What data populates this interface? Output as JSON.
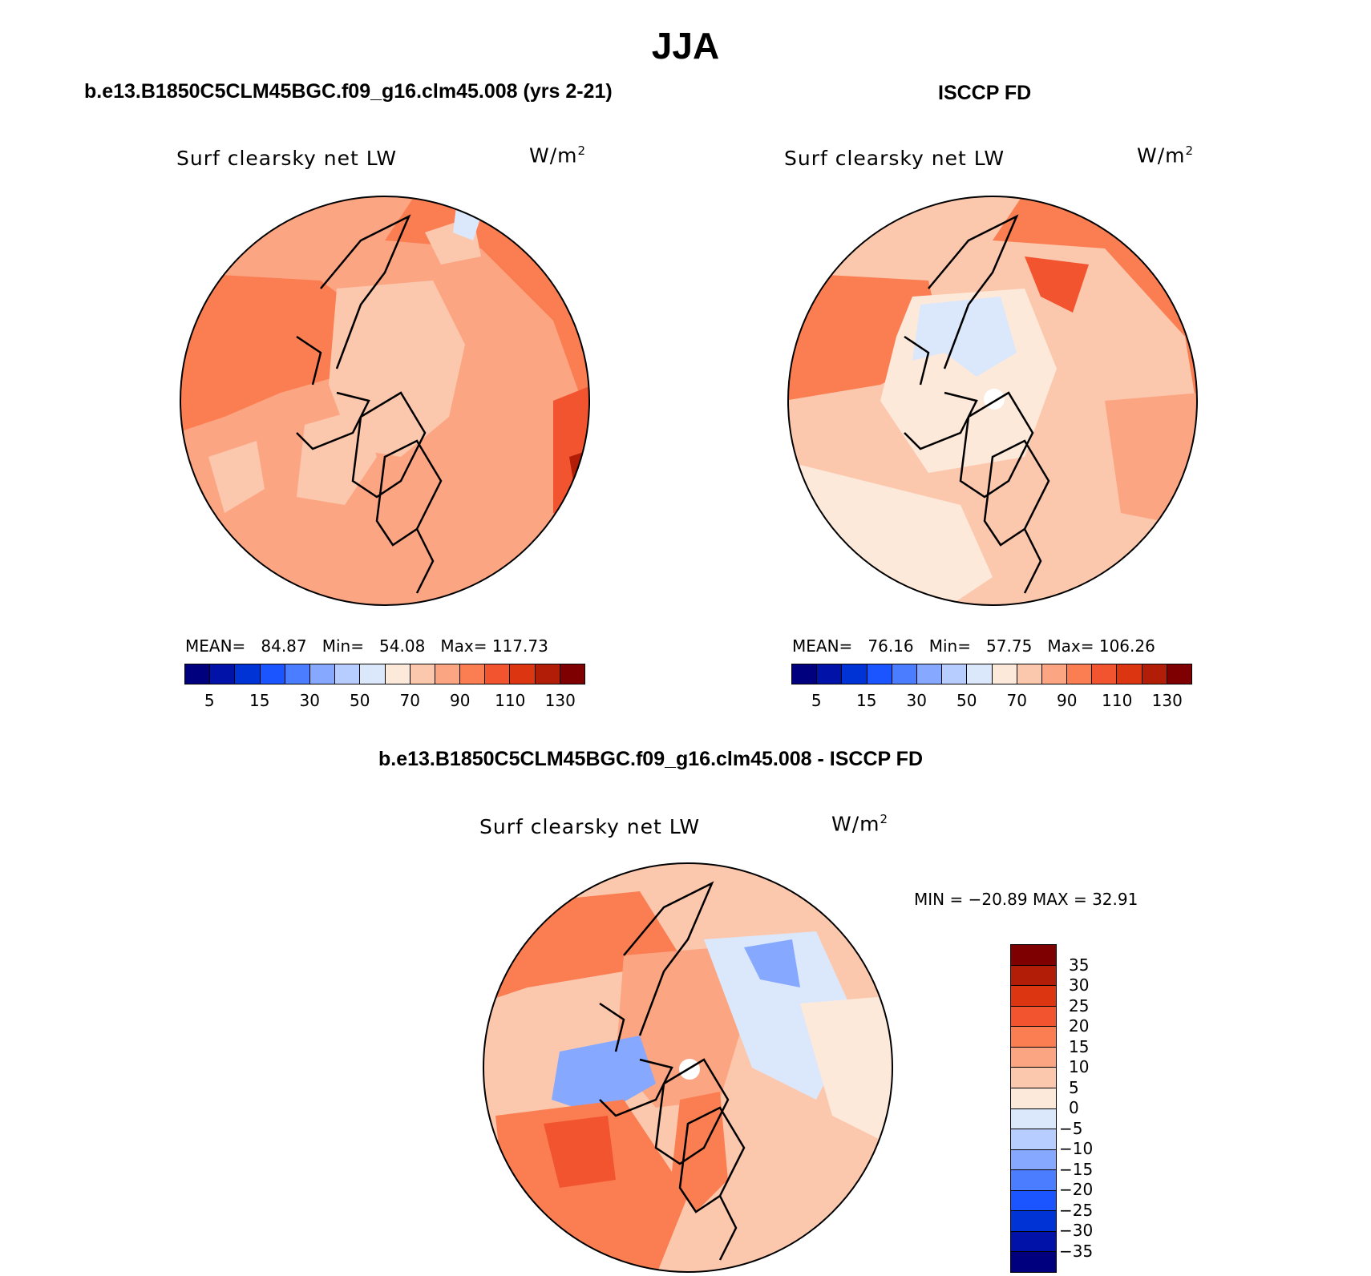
{
  "title": "JJA",
  "panels": {
    "model": {
      "title": "b.e13.B1850C5CLM45BGC.f09_g16.clm45.008 (yrs 2-21)",
      "variable": "Surf clearsky net LW",
      "units_base": "W/m",
      "units_exp": "2",
      "mean_label": "MEAN=",
      "mean": "84.87",
      "min_label": "Min=",
      "min": "54.08",
      "max_label": "Max=",
      "max": "117.73"
    },
    "obs": {
      "title": "ISCCP FD",
      "variable": "Surf clearsky net LW",
      "units_base": "W/m",
      "units_exp": "2",
      "mean_label": "MEAN=",
      "mean": "76.16",
      "min_label": "Min=",
      "min": "57.75",
      "max_label": "Max=",
      "max": "106.26"
    },
    "diff": {
      "title": "b.e13.B1850C5CLM45BGC.f09_g16.clm45.008 - ISCCP FD",
      "variable": "Surf clearsky net LW",
      "units_base": "W/m",
      "units_exp": "2",
      "minmax": "MIN = −20.89 MAX =   32.91"
    }
  },
  "colorbar_abs": {
    "colors": [
      "#00007f",
      "#0012a8",
      "#0033d6",
      "#1a55ff",
      "#4a7dff",
      "#86a8ff",
      "#b8cdff",
      "#dbe8fb",
      "#fde9da",
      "#fcc8ad",
      "#fca583",
      "#fb7e52",
      "#f25430",
      "#dc3511",
      "#b21d08",
      "#7e0000"
    ],
    "tick_labels": [
      "5",
      "15",
      "30",
      "50",
      "70",
      "90",
      "110",
      "130"
    ]
  },
  "colorbar_diff": {
    "colors": [
      "#7e0000",
      "#b21d08",
      "#dc3511",
      "#f25430",
      "#fb7e52",
      "#fca583",
      "#fcc8ad",
      "#fde9da",
      "#dbe8fb",
      "#b8cdff",
      "#86a8ff",
      "#4a7dff",
      "#1a55ff",
      "#0033d6",
      "#0012a8",
      "#00007f"
    ],
    "tick_labels": [
      "35",
      "30",
      "25",
      "20",
      "15",
      "10",
      "5",
      "0",
      "−5",
      "−10",
      "−15",
      "−20",
      "−25",
      "−30",
      "−35"
    ]
  }
}
